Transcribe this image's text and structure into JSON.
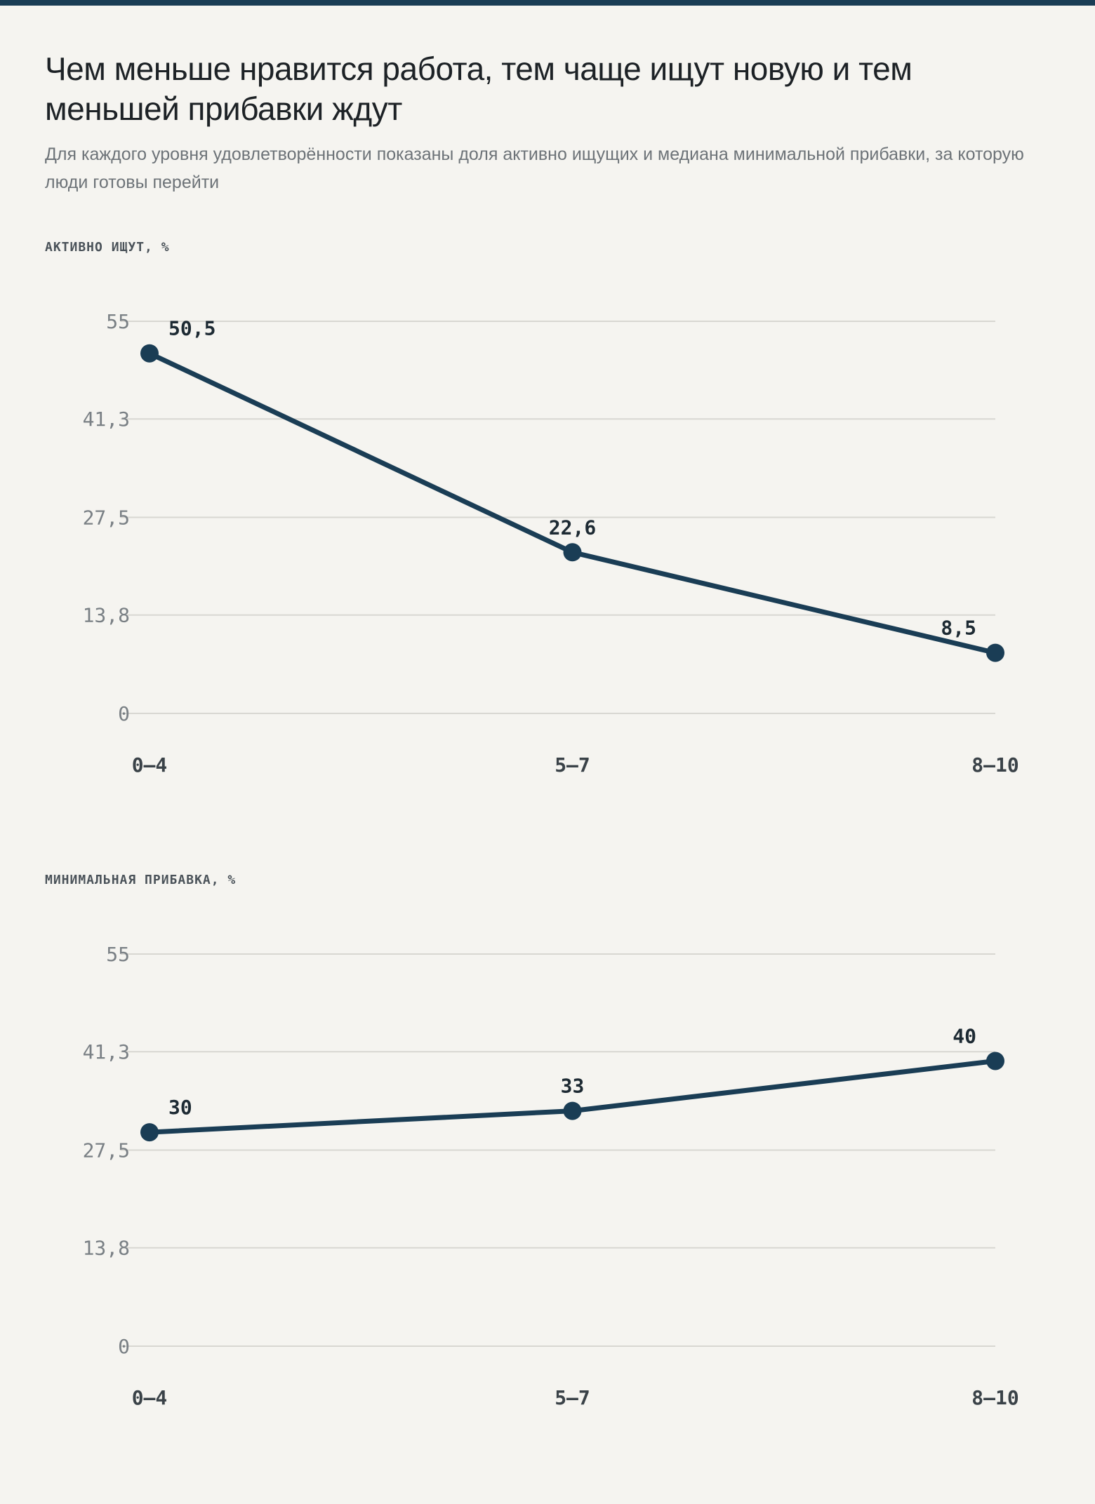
{
  "title": "Чем меньше нравится работа, тем чаще ищут новую и тем меньшей прибавки ждут",
  "subtitle": "Для каждого уровня удовлетворённости показаны доля активно ищущих и медиана минимальной прибавки, за которую люди готовы перейти",
  "colors": {
    "line": "#1a3d55",
    "topbar": "#1a3d55",
    "background": "#f5f4f0"
  },
  "chart_data": [
    {
      "type": "line",
      "title": "АКТИВНО ИЩУТ, %",
      "categories": [
        "0–4",
        "5–7",
        "8–10"
      ],
      "values": [
        50.5,
        22.6,
        8.5
      ],
      "value_labels": [
        "50,5",
        "22,6",
        "8,5"
      ],
      "ylim": [
        0,
        55
      ],
      "yticks": [
        0,
        13.8,
        27.5,
        41.3,
        55
      ],
      "ytick_labels": [
        "0",
        "13,8",
        "27,5",
        "41,3",
        "55"
      ],
      "grid": true
    },
    {
      "type": "line",
      "title": "МИНИМАЛЬНАЯ ПРИБАВКА, %",
      "categories": [
        "0–4",
        "5–7",
        "8–10"
      ],
      "values": [
        30,
        33,
        40
      ],
      "value_labels": [
        "30",
        "33",
        "40"
      ],
      "ylim": [
        0,
        55
      ],
      "yticks": [
        0,
        13.8,
        27.5,
        41.3,
        55
      ],
      "ytick_labels": [
        "0",
        "13,8",
        "27,5",
        "41,3",
        "55"
      ],
      "grid": true
    }
  ]
}
